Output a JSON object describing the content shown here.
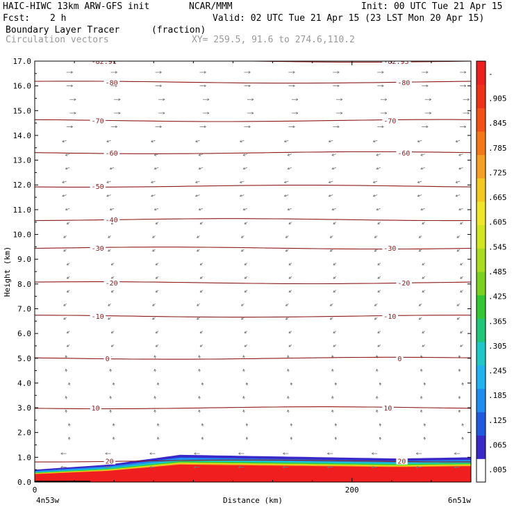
{
  "header": {
    "model": "HAIC-HIWC 13km ARW-GFS init",
    "org": "NCAR/MMM",
    "init": "Init: 00 UTC Tue 21 Apr 15",
    "fcst_label": "Fcst:",
    "fcst_value": "2 h",
    "valid": "Valid: 02 UTC Tue 21 Apr 15 (23 LST Mon 20 Apr 15)",
    "field1": "Boundary Layer Tracer",
    "field1_units": "(fraction)",
    "field2": "Circulation vectors",
    "xy": "XY= 259.5, 91.6 to 274.6,110.2"
  },
  "colors": {
    "contour": "#8b1a1a",
    "vector": "#777777",
    "scale": [
      "#ffffff",
      "#3a28c8",
      "#1e5ae0",
      "#1e8cf0",
      "#1eb4f0",
      "#1ec8c8",
      "#1ec878",
      "#32c832",
      "#78d21e",
      "#aadc1e",
      "#d2e61e",
      "#f0e628",
      "#f5c81e",
      "#f5a01e",
      "#f57814",
      "#f55014",
      "#f03214",
      "#f01e1e"
    ]
  },
  "chart_data": {
    "type": "contour-cross-section",
    "xlabel": "Distance (km)",
    "ylabel": "Height (km)",
    "xlim": [
      0,
      275
    ],
    "ylim": [
      0.0,
      17.0
    ],
    "x_ticks": [
      "0",
      "200"
    ],
    "x_end_labels": [
      "4n53w",
      "6n51w"
    ],
    "y_ticks": [
      "0.0",
      "1.0",
      "2.0",
      "3.0",
      "4.0",
      "5.0",
      "6.0",
      "7.0",
      "8.0",
      "9.0",
      "10.0",
      "11.0",
      "12.0",
      "13.0",
      "14.0",
      "15.0",
      "16.0",
      "17.0"
    ],
    "colorbar_labels": [
      ".005",
      ".065",
      ".125",
      ".185",
      ".245",
      ".305",
      ".365",
      ".425",
      ".485",
      ".545",
      ".605",
      ".665",
      ".725",
      ".785",
      ".845",
      ".905",
      "-"
    ],
    "contours": [
      {
        "value": "-82.9",
        "height": 17.0,
        "labels": [
          "-82.91",
          "-82.93"
        ]
      },
      {
        "value": "-80",
        "height": 16.15,
        "labels": [
          "-80",
          "-80"
        ]
      },
      {
        "value": "-70",
        "height": 14.6,
        "labels": [
          "-70",
          "-70"
        ]
      },
      {
        "value": "-60",
        "height": 13.3,
        "labels": [
          "-60",
          "-60"
        ]
      },
      {
        "value": "-50",
        "height": 11.95,
        "labels": [
          "-50"
        ]
      },
      {
        "value": "-40",
        "height": 10.6,
        "labels": [
          "-40"
        ]
      },
      {
        "value": "-30",
        "height": 9.45,
        "labels": [
          "-30",
          "-30"
        ]
      },
      {
        "value": "-20",
        "height": 8.05,
        "labels": [
          "-20",
          "-20"
        ]
      },
      {
        "value": "-10",
        "height": 6.7,
        "labels": [
          "-10",
          "-10"
        ]
      },
      {
        "value": "0",
        "height": 5.0,
        "labels": [
          "0",
          "0"
        ]
      },
      {
        "value": "10",
        "height": 3.0,
        "labels": [
          "10",
          "10"
        ]
      },
      {
        "value": "20",
        "height": 0.85,
        "labels": [
          "20",
          "20"
        ]
      }
    ],
    "tracer": {
      "boundary_layer_top_km": [
        0.5,
        0.7,
        1.1,
        1.05,
        1.0,
        0.95,
        1.0
      ],
      "value_in_layer": ">0.965"
    }
  }
}
